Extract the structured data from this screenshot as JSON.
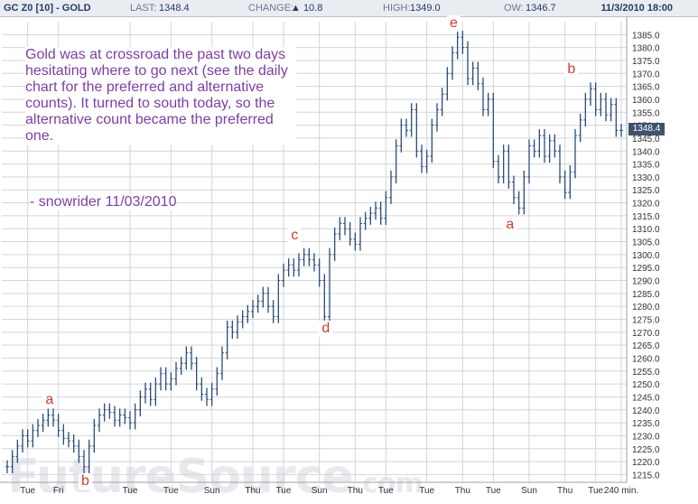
{
  "header": {
    "symbol": "GC Z0 [10] - GOLD",
    "last_label": "LAST:",
    "last_value": "1348.4",
    "change_label": "CHANGE:",
    "change_value": "▲ 10.8",
    "high_label": "HIGH:",
    "high_value": "1349.0",
    "low_label": "OW:",
    "low_value": "1346.7",
    "datetime": "11/3/2010 18:00"
  },
  "annotation": {
    "text": "Gold was at crossroad the past two days hesitating where to go next (see the daily chart for the preferred and alternative counts). It turned to south today, so the alternative count became the preferred one.",
    "signature": "- snowrider  11/03/2010"
  },
  "watermark": {
    "main": "FutureSource",
    "suffix": ".com"
  },
  "wave_labels": [
    {
      "text": "a",
      "x_index": 8,
      "price": 1243.5
    },
    {
      "text": "b",
      "x_index": 15,
      "price": 1212
    },
    {
      "text": "c",
      "x_index": 56,
      "price": 1307
    },
    {
      "text": "d",
      "x_index": 62,
      "price": 1271
    },
    {
      "text": "e",
      "x_index": 87,
      "price": 1389
    },
    {
      "text": "a",
      "x_index": 98,
      "price": 1311
    },
    {
      "text": "b",
      "x_index": 110,
      "price": 1371
    }
  ],
  "colors": {
    "bars": "#2b4d7a",
    "grid": "#d2d6dc",
    "labels": "#d83a2f",
    "note": "#7b3fa7",
    "last_box": "#3e536e"
  },
  "chart_data": {
    "type": "bar",
    "subtype": "ohlc",
    "title": "",
    "xlabel": "",
    "ylabel": "",
    "ylim": [
      1212,
      1390
    ],
    "grid": true,
    "y_ticks": [
      "1215.0",
      "1220.0",
      "1225.0",
      "1230.0",
      "1235.0",
      "1240.0",
      "1245.0",
      "1250.0",
      "1255.0",
      "1260.0",
      "1265.0",
      "1270.0",
      "1275.0",
      "1280.0",
      "1285.0",
      "1290.0",
      "1295.0",
      "1300.0",
      "1305.0",
      "1310.0",
      "1315.0",
      "1320.0",
      "1325.0",
      "1330.0",
      "1335.0",
      "1340.0",
      "1345.0",
      "1350.0",
      "1355.0",
      "1360.0",
      "1365.0",
      "1370.0",
      "1375.0",
      "1380.0",
      "1385.0"
    ],
    "x_ticks": [
      {
        "label": "Tue",
        "index": 4
      },
      {
        "label": "Fri",
        "index": 10
      },
      {
        "label": "Tue",
        "index": 24
      },
      {
        "label": "Tue",
        "index": 32
      },
      {
        "label": "Sun",
        "index": 40
      },
      {
        "label": "Thu",
        "index": 48
      },
      {
        "label": "Tue",
        "index": 54
      },
      {
        "label": "Sun",
        "index": 61
      },
      {
        "label": "Thu",
        "index": 68
      },
      {
        "label": "Tue",
        "index": 74
      },
      {
        "label": "Tue",
        "index": 82
      },
      {
        "label": "Thu",
        "index": 89
      },
      {
        "label": "Tue",
        "index": 95
      },
      {
        "label": "Sun",
        "index": 102
      },
      {
        "label": "Thu",
        "index": 109
      },
      {
        "label": "Tue",
        "index": 115
      },
      {
        "label": "240 min.",
        "index": 120
      }
    ],
    "last_price": "1348.4",
    "closes": [
      1218,
      1222,
      1226,
      1230,
      1228,
      1232,
      1234,
      1236,
      1238,
      1236,
      1232,
      1229,
      1228,
      1226,
      1222,
      1218,
      1226,
      1234,
      1238,
      1240,
      1239,
      1236,
      1238,
      1237,
      1235,
      1240,
      1245,
      1248,
      1244,
      1250,
      1254,
      1250,
      1252,
      1256,
      1258,
      1262,
      1258,
      1250,
      1246,
      1244,
      1248,
      1254,
      1262,
      1272,
      1270,
      1274,
      1276,
      1278,
      1280,
      1282,
      1285,
      1280,
      1276,
      1290,
      1294,
      1296,
      1294,
      1298,
      1300,
      1298,
      1296,
      1290,
      1276,
      1300,
      1308,
      1312,
      1310,
      1306,
      1304,
      1312,
      1314,
      1316,
      1318,
      1314,
      1322,
      1330,
      1342,
      1350,
      1348,
      1356,
      1340,
      1334,
      1338,
      1350,
      1356,
      1362,
      1370,
      1378,
      1384,
      1380,
      1368,
      1372,
      1366,
      1356,
      1360,
      1336,
      1330,
      1340,
      1328,
      1322,
      1318,
      1330,
      1342,
      1340,
      1346,
      1338,
      1344,
      1340,
      1330,
      1324,
      1332,
      1346,
      1352,
      1360,
      1364,
      1356,
      1360,
      1354,
      1358,
      1348,
      1348
    ]
  }
}
